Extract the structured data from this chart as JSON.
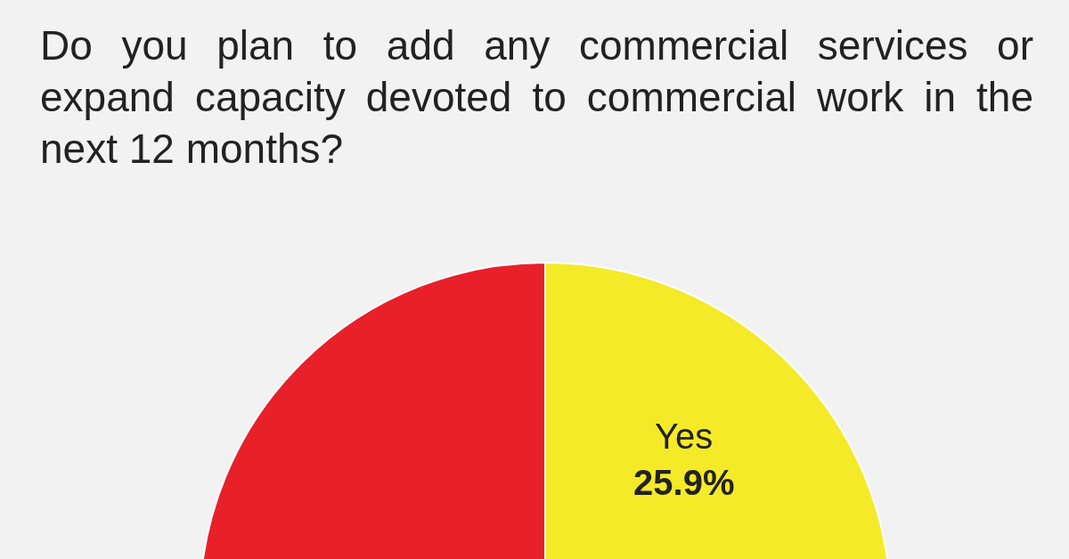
{
  "chart_data": {
    "type": "pie",
    "title": "Do you plan to add any commercial services or expand capacity devoted to commercial work in the next 12 months?",
    "categories": [
      "Yes",
      null
    ],
    "values": [
      25.9,
      74.1
    ],
    "colors": [
      "#f5ea28",
      "#e8202a"
    ],
    "value_labels": [
      "25.9%",
      null
    ]
  }
}
